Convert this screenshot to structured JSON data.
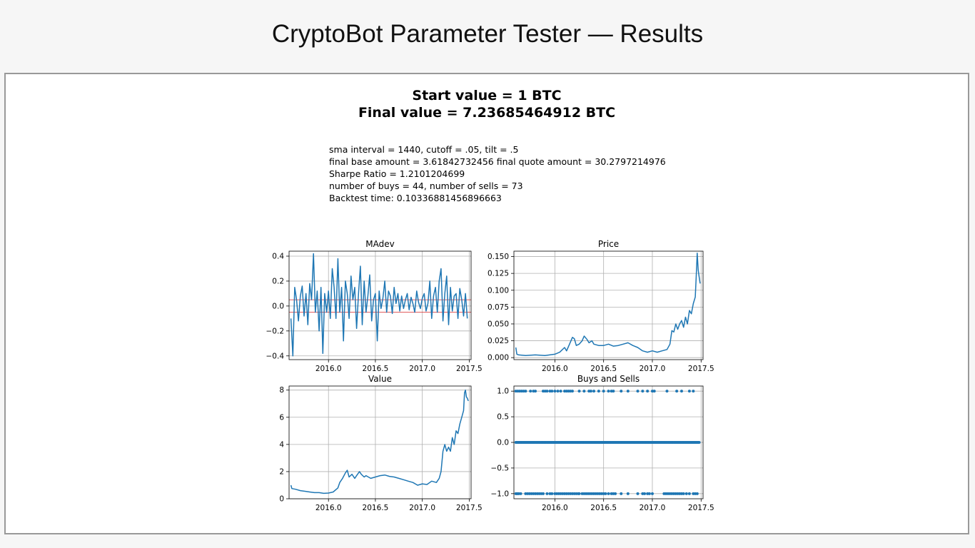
{
  "page": {
    "title": "CryptoBot Parameter Tester — Results"
  },
  "summary": {
    "start_value": "Start value = 1 BTC",
    "final_value": "Final value = 7.23685464912 BTC"
  },
  "params": {
    "line1": "sma interval = 1440, cutoff = .05, tilt = .5",
    "line2": "final base amount = 3.61842732456 final quote amount = 30.2797214976",
    "line3": "Sharpe Ratio = 1.2101204699",
    "line4": "number of buys = 44, number of sells = 73",
    "line5": "Backtest time: 0.10336881456896663"
  },
  "colors": {
    "series": "#1f77b4",
    "cutoff_lines": "#d62728",
    "grid": "#b0b0b0"
  },
  "chart_data": [
    {
      "type": "line",
      "title": "MAdev",
      "xlim": [
        2015.58,
        2017.52
      ],
      "ylim": [
        -0.43,
        0.44
      ],
      "xticks": [
        2016.0,
        2016.5,
        2017.0,
        2017.5
      ],
      "xtick_labels": [
        "2016.0",
        "2016.5",
        "2017.0",
        "2017.5"
      ],
      "yticks": [
        -0.4,
        -0.2,
        0.0,
        0.2,
        0.4
      ],
      "ytick_labels": [
        "−0.4",
        "−0.2",
        "0.0",
        "0.2",
        "0.4"
      ],
      "grid": true,
      "hlines": [
        0.05,
        -0.05
      ],
      "x": [
        2015.6,
        2015.62,
        2015.64,
        2015.66,
        2015.68,
        2015.7,
        2015.72,
        2015.74,
        2015.76,
        2015.78,
        2015.8,
        2015.82,
        2015.84,
        2015.86,
        2015.88,
        2015.9,
        2015.92,
        2015.94,
        2015.96,
        2015.98,
        2016.0,
        2016.02,
        2016.04,
        2016.06,
        2016.08,
        2016.1,
        2016.12,
        2016.14,
        2016.16,
        2016.18,
        2016.2,
        2016.22,
        2016.24,
        2016.26,
        2016.28,
        2016.3,
        2016.32,
        2016.34,
        2016.36,
        2016.38,
        2016.4,
        2016.42,
        2016.44,
        2016.46,
        2016.48,
        2016.5,
        2016.52,
        2016.54,
        2016.56,
        2016.58,
        2016.6,
        2016.62,
        2016.64,
        2016.66,
        2016.68,
        2016.7,
        2016.72,
        2016.74,
        2016.76,
        2016.78,
        2016.8,
        2016.82,
        2016.84,
        2016.86,
        2016.88,
        2016.9,
        2016.92,
        2016.94,
        2016.96,
        2016.98,
        2017.0,
        2017.02,
        2017.04,
        2017.06,
        2017.08,
        2017.1,
        2017.12,
        2017.14,
        2017.16,
        2017.18,
        2017.2,
        2017.22,
        2017.24,
        2017.26,
        2017.28,
        2017.3,
        2017.32,
        2017.34,
        2017.36,
        2017.38,
        2017.4,
        2017.42,
        2017.44,
        2017.46,
        2017.48
      ],
      "y": [
        -0.1,
        -0.4,
        0.15,
        0.05,
        -0.12,
        0.08,
        0.16,
        -0.08,
        0.1,
        -0.15,
        0.18,
        0.05,
        0.42,
        -0.05,
        0.12,
        -0.2,
        0.15,
        -0.38,
        0.1,
        -0.05,
        0.12,
        -0.1,
        0.3,
        0.15,
        -0.1,
        0.38,
        -0.05,
        0.15,
        -0.28,
        0.2,
        0.1,
        -0.1,
        0.24,
        0.05,
        0.15,
        -0.18,
        0.1,
        0.32,
        -0.15,
        0.2,
        -0.05,
        0.08,
        0.25,
        -0.12,
        0.05,
        0.1,
        -0.28,
        0.12,
        -0.02,
        0.06,
        0.2,
        -0.05,
        0.12,
        0.08,
        -0.06,
        0.15,
        0.02,
        0.1,
        -0.04,
        0.08,
        -0.02,
        0.05,
        0.1,
        -0.03,
        0.07,
        0.02,
        -0.05,
        0.12,
        0.03,
        -0.02,
        0.06,
        0.1,
        -0.04,
        0.02,
        0.2,
        -0.1,
        0.08,
        0.15,
        -0.05,
        0.2,
        0.3,
        -0.12,
        0.1,
        0.24,
        -0.15,
        0.15,
        -0.04,
        0.08,
        0.1,
        -0.1,
        0.14,
        0.05,
        -0.08,
        0.1,
        -0.1
      ]
    },
    {
      "type": "line",
      "title": "Price",
      "xlim": [
        2015.58,
        2017.52
      ],
      "ylim": [
        -0.003,
        0.158
      ],
      "xticks": [
        2016.0,
        2016.5,
        2017.0,
        2017.5
      ],
      "xtick_labels": [
        "2016.0",
        "2016.5",
        "2017.0",
        "2017.5"
      ],
      "yticks": [
        0.0,
        0.025,
        0.05,
        0.075,
        0.1,
        0.125,
        0.15
      ],
      "ytick_labels": [
        "0.000",
        "0.025",
        "0.050",
        "0.075",
        "0.100",
        "0.125",
        "0.150"
      ],
      "grid": true,
      "x": [
        2015.6,
        2015.61,
        2015.63,
        2015.7,
        2015.8,
        2015.9,
        2016.0,
        2016.05,
        2016.1,
        2016.12,
        2016.15,
        2016.18,
        2016.2,
        2016.22,
        2016.25,
        2016.28,
        2016.3,
        2016.33,
        2016.35,
        2016.38,
        2016.4,
        2016.45,
        2016.5,
        2016.55,
        2016.6,
        2016.65,
        2016.7,
        2016.75,
        2016.8,
        2016.85,
        2016.9,
        2016.95,
        2017.0,
        2017.05,
        2017.1,
        2017.15,
        2017.18,
        2017.2,
        2017.22,
        2017.24,
        2017.26,
        2017.28,
        2017.3,
        2017.32,
        2017.34,
        2017.36,
        2017.38,
        2017.4,
        2017.42,
        2017.44,
        2017.45,
        2017.46,
        2017.47,
        2017.48,
        2017.49
      ],
      "y": [
        0.015,
        0.005,
        0.004,
        0.003,
        0.004,
        0.003,
        0.005,
        0.008,
        0.015,
        0.01,
        0.02,
        0.03,
        0.028,
        0.018,
        0.02,
        0.025,
        0.032,
        0.027,
        0.022,
        0.025,
        0.02,
        0.018,
        0.018,
        0.02,
        0.017,
        0.018,
        0.02,
        0.022,
        0.018,
        0.015,
        0.01,
        0.008,
        0.01,
        0.008,
        0.01,
        0.012,
        0.02,
        0.04,
        0.038,
        0.05,
        0.042,
        0.05,
        0.055,
        0.045,
        0.06,
        0.05,
        0.07,
        0.065,
        0.08,
        0.09,
        0.12,
        0.155,
        0.13,
        0.12,
        0.11
      ]
    },
    {
      "type": "line",
      "title": "Value",
      "xlim": [
        2015.58,
        2017.52
      ],
      "ylim": [
        0,
        8.3
      ],
      "xticks": [
        2016.0,
        2016.5,
        2017.0,
        2017.5
      ],
      "xtick_labels": [
        "2016.0",
        "2016.5",
        "2017.0",
        "2017.5"
      ],
      "yticks": [
        0,
        2,
        4,
        6,
        8
      ],
      "ytick_labels": [
        "0",
        "2",
        "4",
        "6",
        "8"
      ],
      "grid": true,
      "x": [
        2015.6,
        2015.61,
        2015.65,
        2015.7,
        2015.75,
        2015.8,
        2015.85,
        2015.9,
        2015.95,
        2016.0,
        2016.05,
        2016.1,
        2016.12,
        2016.15,
        2016.18,
        2016.2,
        2016.22,
        2016.25,
        2016.28,
        2016.3,
        2016.33,
        2016.35,
        2016.38,
        2016.4,
        2016.45,
        2016.5,
        2016.55,
        2016.6,
        2016.65,
        2016.7,
        2016.75,
        2016.8,
        2016.85,
        2016.9,
        2016.95,
        2017.0,
        2017.05,
        2017.1,
        2017.15,
        2017.18,
        2017.2,
        2017.22,
        2017.24,
        2017.26,
        2017.28,
        2017.3,
        2017.32,
        2017.34,
        2017.36,
        2017.38,
        2017.4,
        2017.42,
        2017.44,
        2017.45,
        2017.46,
        2017.47,
        2017.48,
        2017.49
      ],
      "y": [
        1.0,
        0.75,
        0.7,
        0.6,
        0.55,
        0.5,
        0.45,
        0.45,
        0.4,
        0.42,
        0.5,
        0.8,
        1.2,
        1.5,
        1.9,
        2.1,
        1.6,
        1.8,
        1.5,
        1.7,
        2.0,
        1.8,
        1.6,
        1.7,
        1.5,
        1.6,
        1.7,
        1.75,
        1.65,
        1.6,
        1.5,
        1.4,
        1.3,
        1.2,
        1.0,
        1.1,
        1.05,
        1.3,
        1.2,
        1.5,
        2.0,
        3.5,
        4.0,
        3.5,
        3.8,
        3.5,
        4.5,
        4.0,
        5.0,
        4.8,
        5.5,
        6.0,
        6.5,
        7.8,
        8.0,
        7.5,
        7.4,
        7.2
      ]
    },
    {
      "type": "scatter",
      "title": "Buys and Sells",
      "xlim": [
        2015.58,
        2017.52
      ],
      "ylim": [
        -1.1,
        1.1
      ],
      "xticks": [
        2016.0,
        2016.5,
        2017.0,
        2017.5
      ],
      "xtick_labels": [
        "2016.0",
        "2016.5",
        "2017.0",
        "2017.5"
      ],
      "yticks": [
        -1.0,
        -0.5,
        0.0,
        0.5,
        1.0
      ],
      "ytick_labels": [
        "−1.0",
        "−0.5",
        "0.0",
        "0.5",
        "1.0"
      ],
      "grid": true,
      "buys_x": [
        2015.6,
        2015.62,
        2015.64,
        2015.66,
        2015.68,
        2015.7,
        2015.75,
        2015.78,
        2015.8,
        2015.88,
        2015.9,
        2015.92,
        2015.95,
        2015.97,
        2016.0,
        2016.03,
        2016.06,
        2016.1,
        2016.12,
        2016.14,
        2016.16,
        2016.18,
        2016.25,
        2016.3,
        2016.35,
        2016.37,
        2016.4,
        2016.45,
        2016.5,
        2016.55,
        2016.58,
        2016.6,
        2016.68,
        2016.75,
        2016.85,
        2016.9,
        2016.95,
        2017.0,
        2017.02,
        2017.15,
        2017.25,
        2017.3,
        2017.38,
        2017.42
      ],
      "sells_x": [
        2015.6,
        2015.61,
        2015.62,
        2015.63,
        2015.65,
        2015.7,
        2015.72,
        2015.74,
        2015.76,
        2015.78,
        2015.8,
        2015.82,
        2015.84,
        2015.86,
        2015.88,
        2015.92,
        2015.95,
        2015.97,
        2016.0,
        2016.02,
        2016.04,
        2016.06,
        2016.08,
        2016.1,
        2016.12,
        2016.14,
        2016.16,
        2016.18,
        2016.2,
        2016.22,
        2016.24,
        2016.25,
        2016.28,
        2016.3,
        2016.32,
        2016.34,
        2016.36,
        2016.38,
        2016.4,
        2016.42,
        2016.44,
        2016.46,
        2016.48,
        2016.5,
        2016.52,
        2016.55,
        2016.58,
        2016.6,
        2016.62,
        2016.68,
        2016.75,
        2016.85,
        2016.9,
        2016.92,
        2016.95,
        2016.97,
        2017.0,
        2017.12,
        2017.14,
        2017.16,
        2017.18,
        2017.2,
        2017.22,
        2017.24,
        2017.26,
        2017.28,
        2017.3,
        2017.32,
        2017.35,
        2017.38,
        2017.42,
        2017.44,
        2017.46
      ],
      "holds_x_start": 2015.6,
      "holds_x_end": 2017.48,
      "holds_count": 190
    }
  ]
}
